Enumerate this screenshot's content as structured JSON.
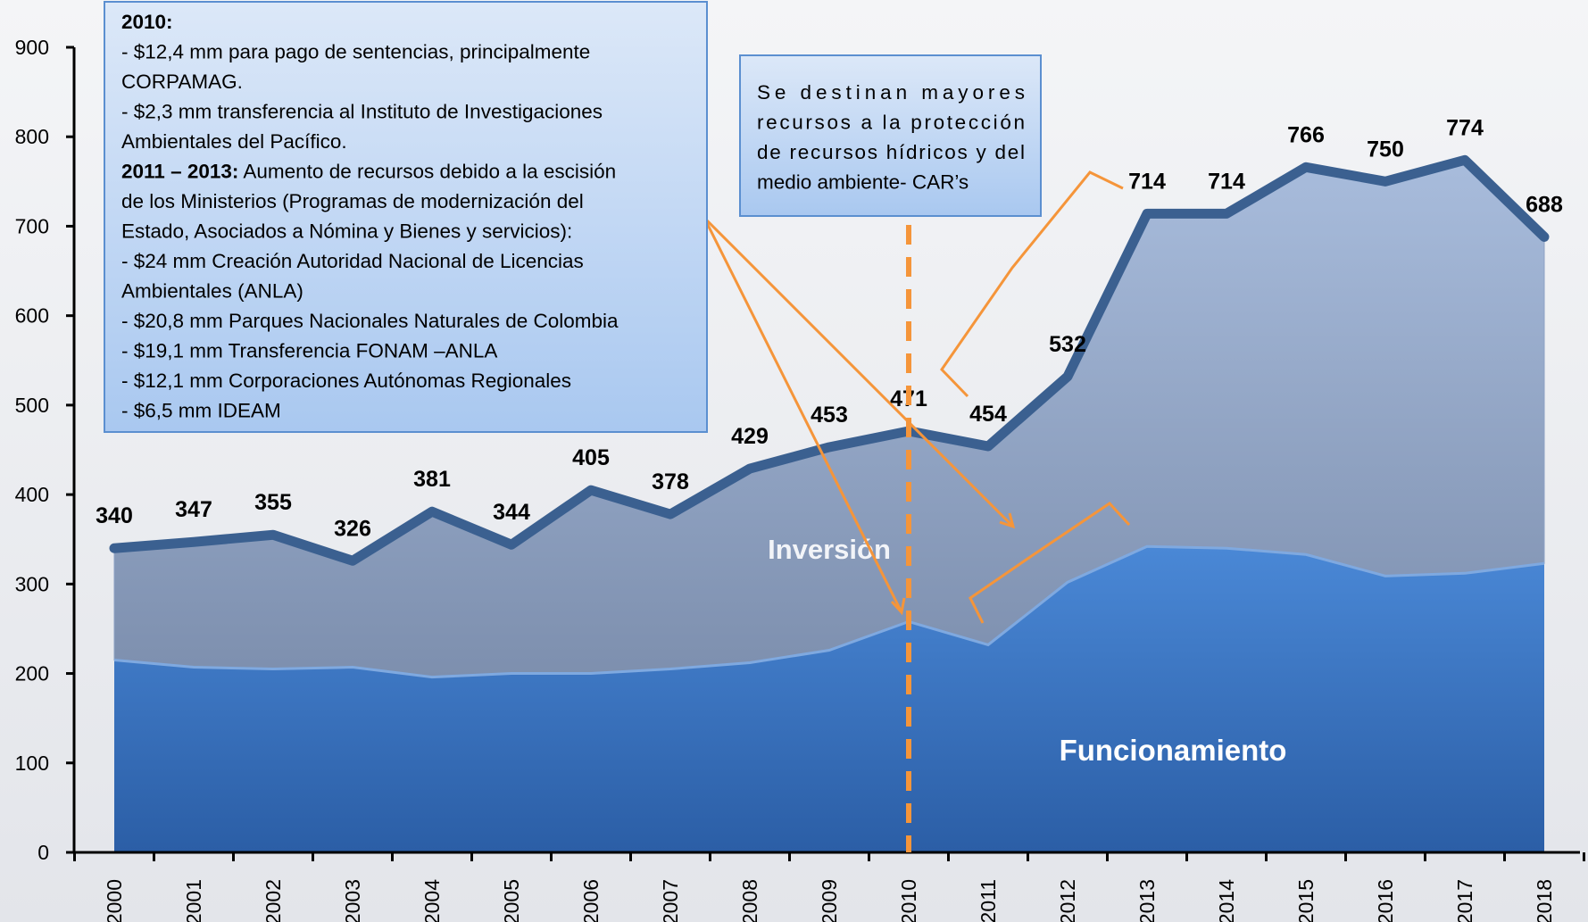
{
  "chart_data": {
    "type": "stacked-area",
    "categories": [
      "2000",
      "2001",
      "2002",
      "2003",
      "2004",
      "2005",
      "2006",
      "2007",
      "2008",
      "2009",
      "2010",
      "2011",
      "2012",
      "2013",
      "2014",
      "2015",
      "2016",
      "2017",
      "2018"
    ],
    "ylim": [
      0,
      900
    ],
    "yticks": [
      0,
      100,
      200,
      300,
      400,
      500,
      600,
      700,
      800,
      900
    ],
    "total": {
      "color": "#3b6090",
      "values": [
        340,
        347,
        355,
        326,
        381,
        344,
        405,
        378,
        429,
        453,
        471,
        454,
        532,
        714,
        714,
        766,
        750,
        774,
        688
      ]
    },
    "areas": [
      {
        "name": "Funcionamiento",
        "color": "#3d7acb",
        "values": [
          215,
          207,
          205,
          207,
          196,
          200,
          200,
          205,
          212,
          226,
          258,
          232,
          302,
          342,
          340,
          333,
          309,
          312,
          323
        ]
      },
      {
        "name": "Inversión",
        "color": "#8ea2c4"
      }
    ],
    "marker_category": "2010",
    "annotations": [
      {
        "lines": [
          {
            "bold": "2010:"
          },
          {
            "text": "- $12,4 mm para pago de sentencias, principalmente"
          },
          {
            "text": "CORPAMAG."
          },
          {
            "text": "- $2,3 mm transferencia al Instituto de Investigaciones"
          },
          {
            "text": "Ambientales del Pacífico."
          },
          {
            "bold": "2011 – 2013:",
            "text": " Aumento de recursos debido a la escisión"
          },
          {
            "text": "de los Ministerios (Programas de modernización del"
          },
          {
            "text": "Estado, Asociados a Nómina y Bienes y servicios):"
          },
          {
            "text": "- $24 mm Creación Autoridad Nacional de Licencias"
          },
          {
            "text": "Ambientales (ANLA)"
          },
          {
            "text": "- $20,8 mm Parques Nacionales Naturales de Colombia"
          },
          {
            "text": "- $19,1 mm Transferencia FONAM –ANLA"
          },
          {
            "text": "- $12,1 mm Corporaciones Autónomas Regionales"
          },
          {
            "text": "- $6,5 mm IDEAM"
          }
        ]
      },
      {
        "lines": [
          {
            "text": "Se destinan mayores"
          },
          {
            "text": "recursos a la protección"
          },
          {
            "text": "de recursos hídricos y del"
          },
          {
            "text": "medio ambiente- CAR’s"
          }
        ]
      }
    ]
  }
}
